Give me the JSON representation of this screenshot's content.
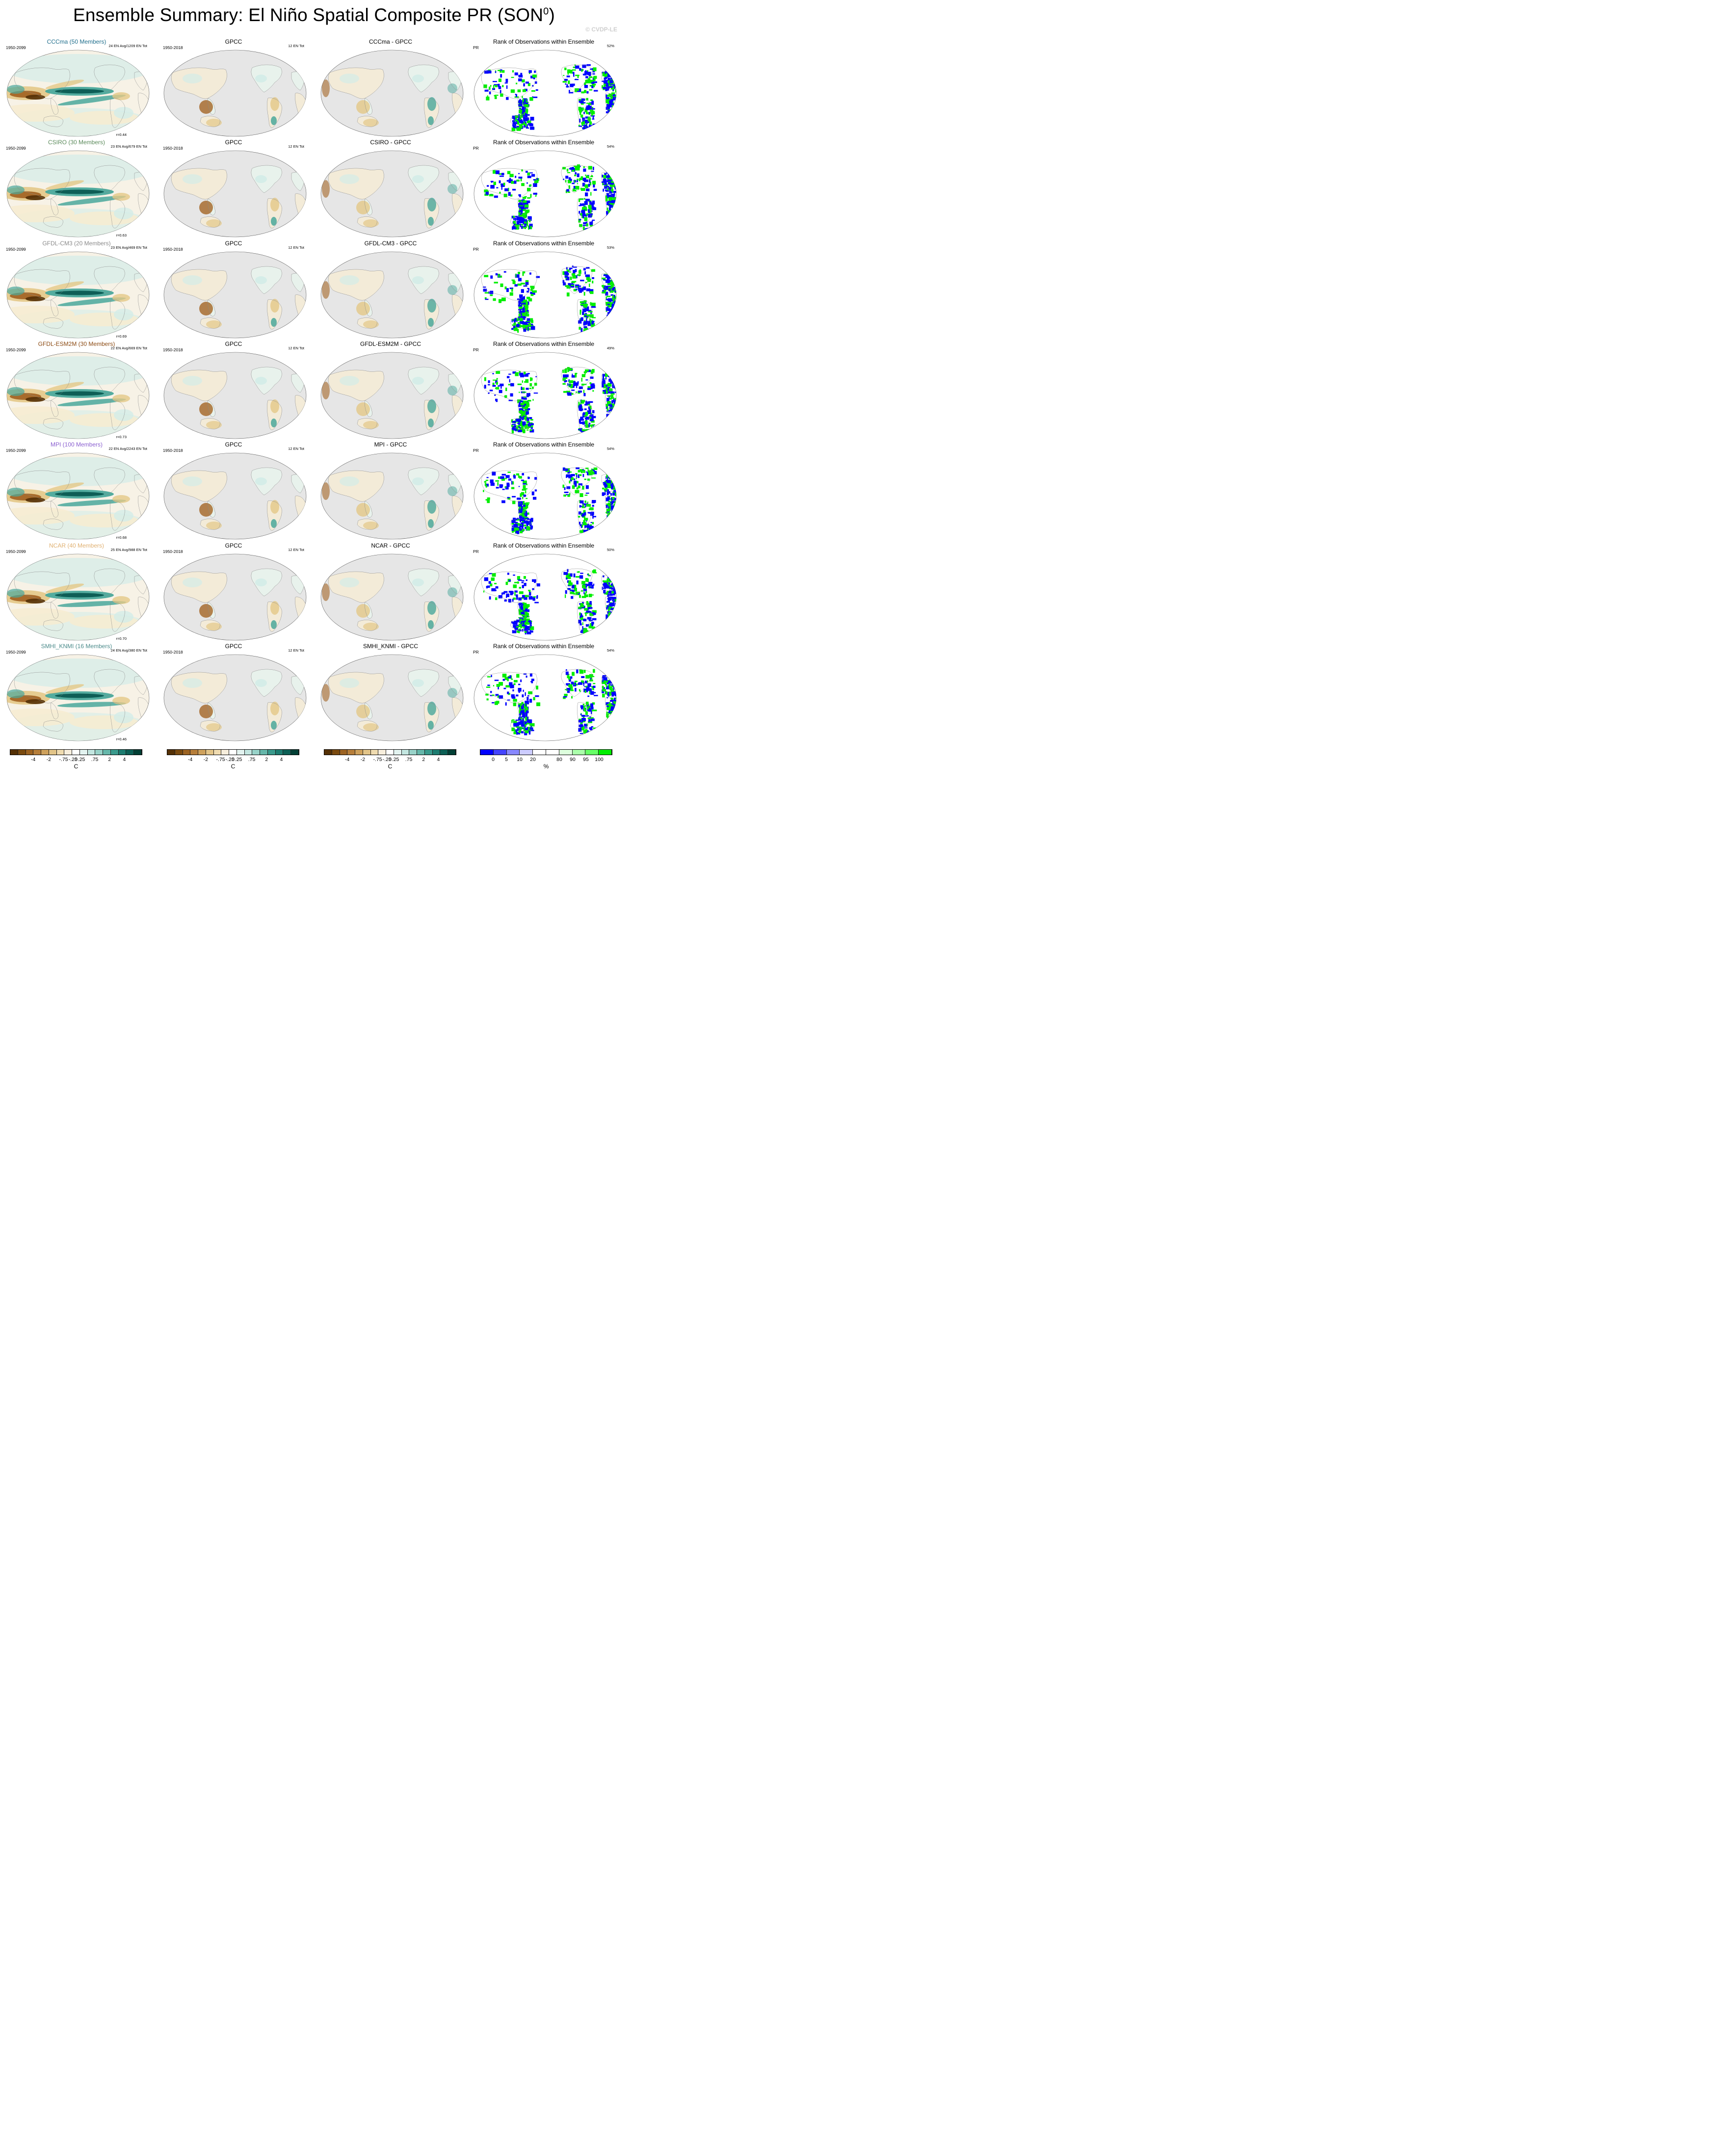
{
  "title": "Ensemble Summary: El Niño Spatial Composite PR (SON",
  "title_sup": "0",
  "title_end": ")",
  "copyright": "© CVDP-LE",
  "colors": {
    "brown_dark": "#543005",
    "brown": "#a46526",
    "tan": "#e3c887",
    "cream": "#f6ecd2",
    "mint": "#d3ece8",
    "teal": "#4aa89b",
    "teal_dark": "#0b5a52",
    "land": "#e6e6e6",
    "rank_blue": "#0000ff",
    "rank_green": "#00ee00"
  },
  "rows": [
    {
      "model": "CCCma (50 Members)",
      "model_color": "#1f6e8c",
      "ens_info": "24 EN Avg/1209 EN Tot",
      "corr": "r=0.44",
      "diff": "CCCma - GPCC",
      "rank_pct": "52%"
    },
    {
      "model": "CSIRO (30 Members)",
      "model_color": "#5a8a5a",
      "ens_info": "23 EN Avg/679 EN Tot",
      "corr": "r=0.63",
      "diff": "CSIRO - GPCC",
      "rank_pct": "54%"
    },
    {
      "model": "GFDL-CM3 (20 Members)",
      "model_color": "#8a8a8a",
      "ens_info": "23 EN Avg/469 EN Tot",
      "corr": "r=0.69",
      "diff": "GFDL-CM3 - GPCC",
      "rank_pct": "53%"
    },
    {
      "model": "GFDL-ESM2M (30 Members)",
      "model_color": "#8b4a12",
      "ens_info": "22 EN Avg/669 EN Tot",
      "corr": "r=0.73",
      "diff": "GFDL-ESM2M - GPCC",
      "rank_pct": "49%"
    },
    {
      "model": "MPI (100 Members)",
      "model_color": "#8a5fd0",
      "ens_info": "22 EN Avg/2243 EN Tot",
      "corr": "r=0.68",
      "diff": "MPI - GPCC",
      "rank_pct": "54%"
    },
    {
      "model": "NCAR (40 Members)",
      "model_color": "#e0b070",
      "ens_info": "25 EN Avg/988 EN Tot",
      "corr": "r=0.70",
      "diff": "NCAR - GPCC",
      "rank_pct": "50%"
    },
    {
      "model": "SMHI_KNMI (16 Members)",
      "model_color": "#4a8a8a",
      "ens_info": "24 EN Avg/380 EN Tot",
      "corr": "r=0.46",
      "diff": "SMHI_KNMI - GPCC",
      "rank_pct": "54%"
    }
  ],
  "model_period": "1950-2099",
  "obs_title": "GPCC",
  "obs_period": "1950-2018",
  "obs_info": "12 EN Tot",
  "rank_title": "Rank of Observations within Ensemble",
  "rank_var": "PR",
  "colorbar_div": {
    "colors": [
      "#543005",
      "#7a4a0f",
      "#9c6322",
      "#b67e3a",
      "#cea15c",
      "#e2c488",
      "#efdbb0",
      "#f7eedc",
      "#ffffff",
      "#e3f3f0",
      "#c3e6e0",
      "#98d2c8",
      "#66b7aa",
      "#3a9a8c",
      "#1d7c70",
      "#0c5f55",
      "#013f35"
    ],
    "ticks": [
      "-4",
      "-2",
      "-.75",
      "-.25",
      "0",
      ".25",
      ".75",
      "2",
      "4"
    ],
    "unit": "C"
  },
  "colorbar_rank": {
    "colors": [
      "#0000ff",
      "#4444ff",
      "#8888ff",
      "#ccccff",
      "#ffffff",
      "#ffffff",
      "#ddffdd",
      "#aaffaa",
      "#66ff66",
      "#00ee00"
    ],
    "ticks": [
      "0",
      "5",
      "10",
      "20",
      "80",
      "90",
      "95",
      "100"
    ],
    "unit": "%"
  }
}
